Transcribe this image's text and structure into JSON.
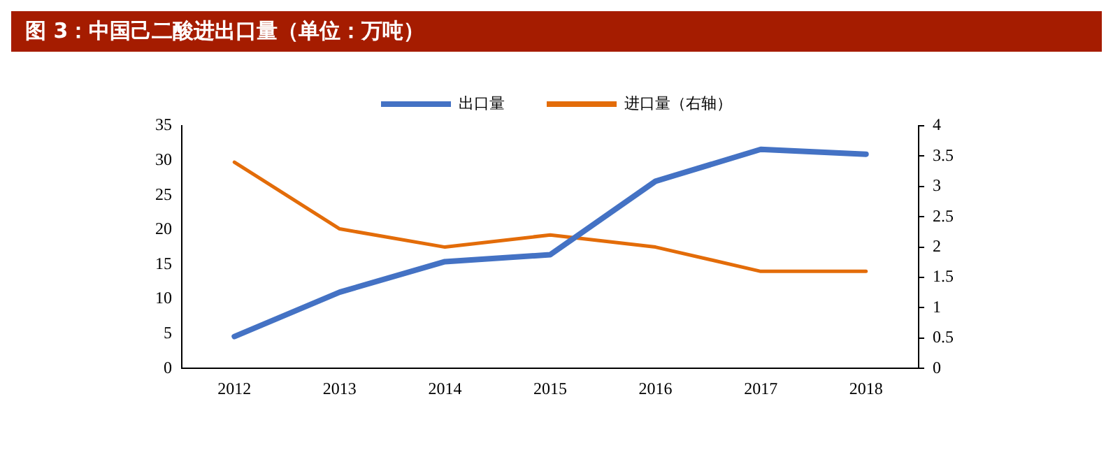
{
  "chart_data": {
    "type": "line",
    "title": "图 3：中国己二酸进出口量（单位：万吨）",
    "categories": [
      "2012",
      "2013",
      "2014",
      "2015",
      "2016",
      "2017",
      "2018"
    ],
    "series": [
      {
        "name": "出口量",
        "color": "#4472c4",
        "values": [
          4.6,
          11,
          15.4,
          16.4,
          27,
          31.6,
          30.9
        ]
      },
      {
        "name": "进口量（右轴）",
        "color": "#e36c09",
        "axis": "y2",
        "values": [
          3.4,
          2.3,
          2.0,
          2.2,
          2.0,
          1.6,
          1.6
        ]
      }
    ],
    "ylim": [
      0,
      35
    ],
    "yticks": [
      0,
      5,
      10,
      15,
      20,
      25,
      30,
      35
    ],
    "y2lim": [
      0,
      4
    ],
    "y2ticks": [
      0,
      0.5,
      1,
      1.5,
      2,
      2.5,
      3,
      3.5,
      4
    ],
    "grid": false,
    "legend": "top",
    "marker": "none",
    "line_style": "solid"
  }
}
